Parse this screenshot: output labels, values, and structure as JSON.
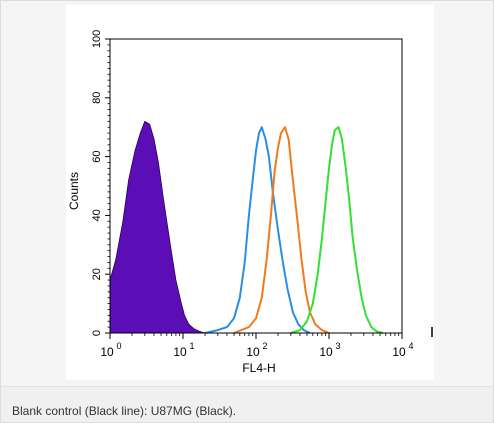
{
  "caption": "Blank control (Black line): U87MG (Black).",
  "chart_data": {
    "type": "area",
    "xlabel": "FL4-H",
    "ylabel": "Counts",
    "x_scale": "log",
    "xlim": [
      1,
      10000
    ],
    "ylim": [
      0,
      100
    ],
    "x_ticks": [
      {
        "base": "10",
        "exp": "0"
      },
      {
        "base": "10",
        "exp": "1"
      },
      {
        "base": "10",
        "exp": "2"
      },
      {
        "base": "10",
        "exp": "3"
      },
      {
        "base": "10",
        "exp": "4"
      }
    ],
    "y_ticks": [
      "0",
      "20",
      "40",
      "60",
      "80",
      "100"
    ],
    "grid": false,
    "series": [
      {
        "color": "#5b0eb5",
        "filled": true,
        "points": [
          [
            1.0,
            18
          ],
          [
            1.2,
            25
          ],
          [
            1.5,
            38
          ],
          [
            1.8,
            52
          ],
          [
            2.2,
            62
          ],
          [
            2.6,
            68
          ],
          [
            3.0,
            72
          ],
          [
            3.5,
            71
          ],
          [
            4.0,
            66
          ],
          [
            4.6,
            58
          ],
          [
            5.3,
            47
          ],
          [
            6.0,
            38
          ],
          [
            7.0,
            27
          ],
          [
            8.0,
            18
          ],
          [
            9.3,
            11
          ],
          [
            10.5,
            6
          ],
          [
            12.0,
            3
          ],
          [
            14.0,
            1.5
          ],
          [
            17.0,
            0.5
          ],
          [
            20.0,
            0
          ]
        ]
      },
      {
        "color": "#2b8fe0",
        "filled": false,
        "points": [
          [
            20,
            0
          ],
          [
            30,
            1
          ],
          [
            40,
            2
          ],
          [
            50,
            5
          ],
          [
            60,
            12
          ],
          [
            70,
            24
          ],
          [
            80,
            40
          ],
          [
            90,
            52
          ],
          [
            100,
            62
          ],
          [
            110,
            68
          ],
          [
            120,
            70
          ],
          [
            135,
            66
          ],
          [
            150,
            60
          ],
          [
            170,
            48
          ],
          [
            200,
            35
          ],
          [
            230,
            25
          ],
          [
            270,
            15
          ],
          [
            320,
            7
          ],
          [
            380,
            3
          ],
          [
            450,
            1
          ],
          [
            550,
            0
          ]
        ]
      },
      {
        "color": "#f07a22",
        "filled": false,
        "points": [
          [
            50,
            0
          ],
          [
            80,
            2
          ],
          [
            100,
            5
          ],
          [
            120,
            12
          ],
          [
            140,
            25
          ],
          [
            160,
            40
          ],
          [
            180,
            55
          ],
          [
            200,
            63
          ],
          [
            220,
            68
          ],
          [
            250,
            70
          ],
          [
            280,
            66
          ],
          [
            320,
            52
          ],
          [
            370,
            38
          ],
          [
            420,
            25
          ],
          [
            480,
            14
          ],
          [
            550,
            7
          ],
          [
            650,
            3
          ],
          [
            800,
            1
          ],
          [
            1000,
            0
          ]
        ]
      },
      {
        "color": "#33e033",
        "filled": false,
        "points": [
          [
            300,
            0
          ],
          [
            400,
            1
          ],
          [
            500,
            4
          ],
          [
            600,
            10
          ],
          [
            700,
            20
          ],
          [
            800,
            32
          ],
          [
            900,
            45
          ],
          [
            1000,
            56
          ],
          [
            1100,
            64
          ],
          [
            1200,
            69
          ],
          [
            1350,
            70
          ],
          [
            1500,
            66
          ],
          [
            1700,
            56
          ],
          [
            1900,
            45
          ],
          [
            2100,
            33
          ],
          [
            2400,
            22
          ],
          [
            2800,
            12
          ],
          [
            3200,
            6
          ],
          [
            3800,
            2
          ],
          [
            4500,
            0.5
          ],
          [
            5500,
            0
          ]
        ]
      }
    ]
  }
}
